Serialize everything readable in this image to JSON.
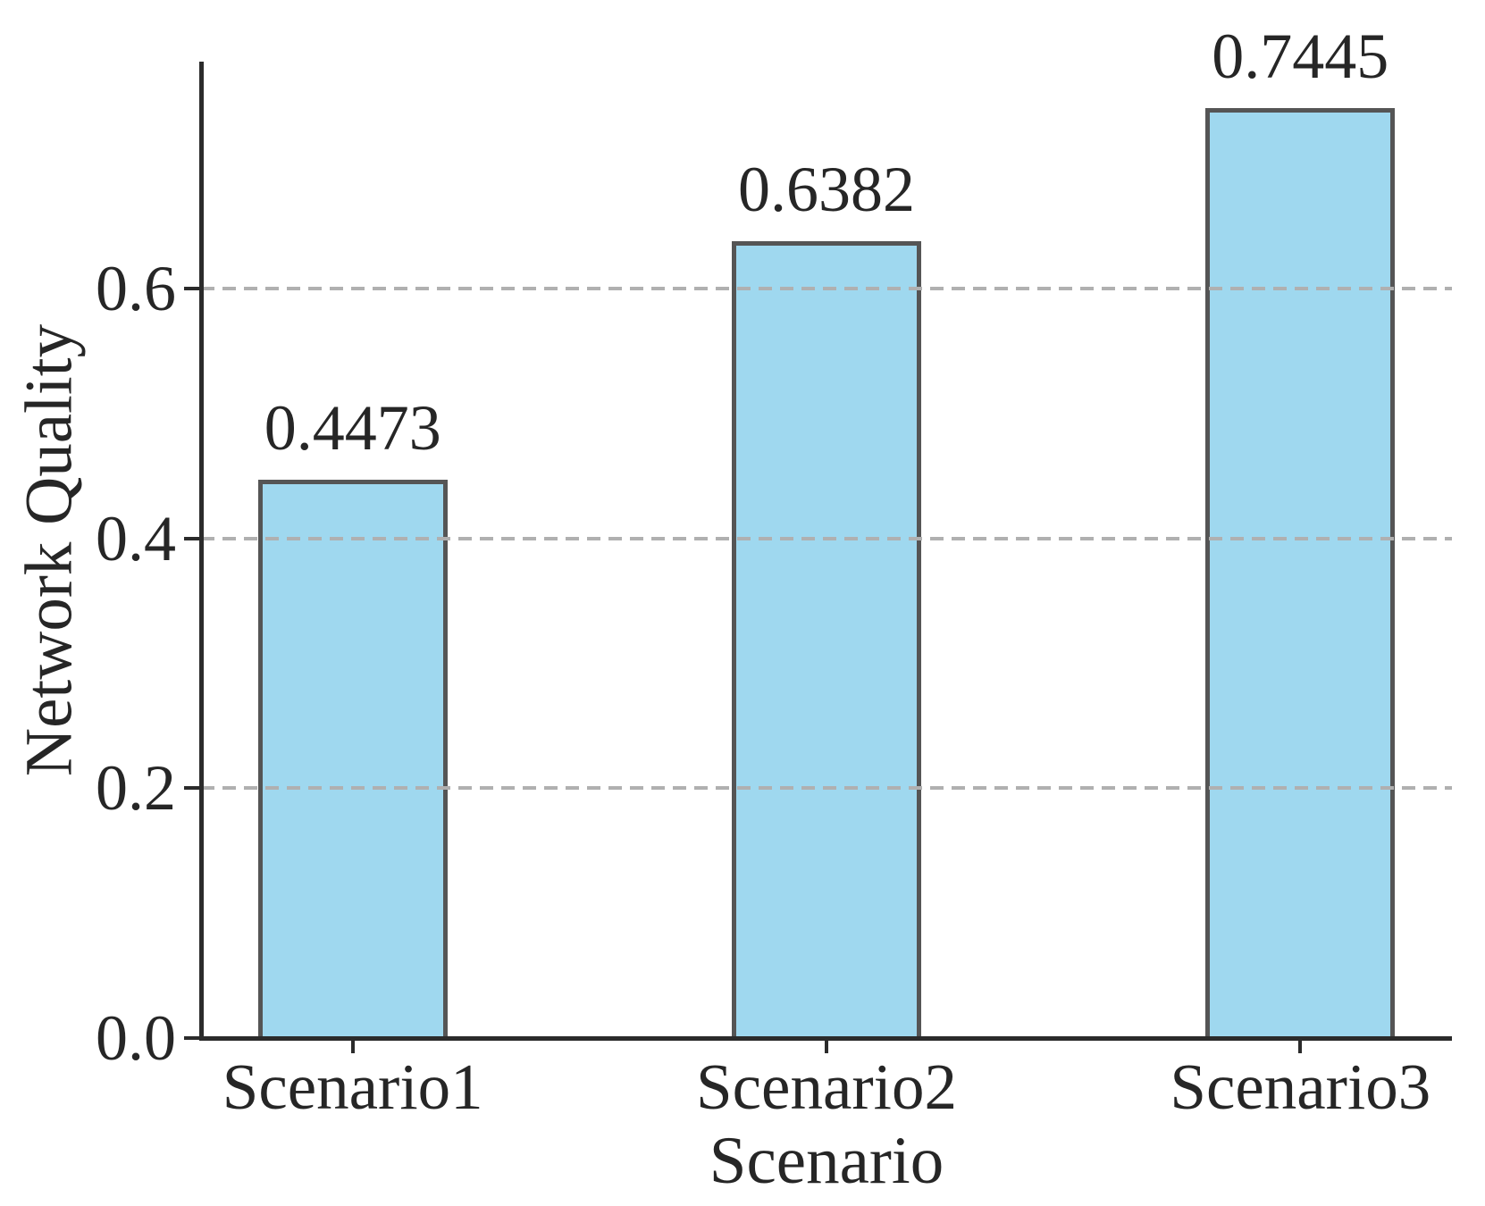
{
  "chart_data": {
    "type": "bar",
    "title": "",
    "xlabel": "Scenario",
    "ylabel": "Network Quality",
    "categories": [
      "Scenario1",
      "Scenario2",
      "Scenario3"
    ],
    "values": [
      0.4473,
      0.6382,
      0.7445
    ],
    "value_labels": [
      "0.4473",
      "0.6382",
      "0.7445"
    ],
    "yticks": [
      0,
      0.2,
      0.4,
      0.6
    ],
    "ytick_labels": [
      "0.0",
      "0.2",
      "0.4",
      "0.6"
    ],
    "ylim": [
      0,
      0.7817
    ],
    "grid": {
      "axis": "y",
      "style": "dashed",
      "drawn_above_bars": true
    },
    "legend": "none",
    "colors": {
      "bar_fill": "#9FD8EF",
      "bar_edge": "#555555",
      "spine": "#2B2B2B",
      "grid": "#B0B0B0",
      "text": "#262626",
      "background": "#FFFFFF"
    }
  }
}
